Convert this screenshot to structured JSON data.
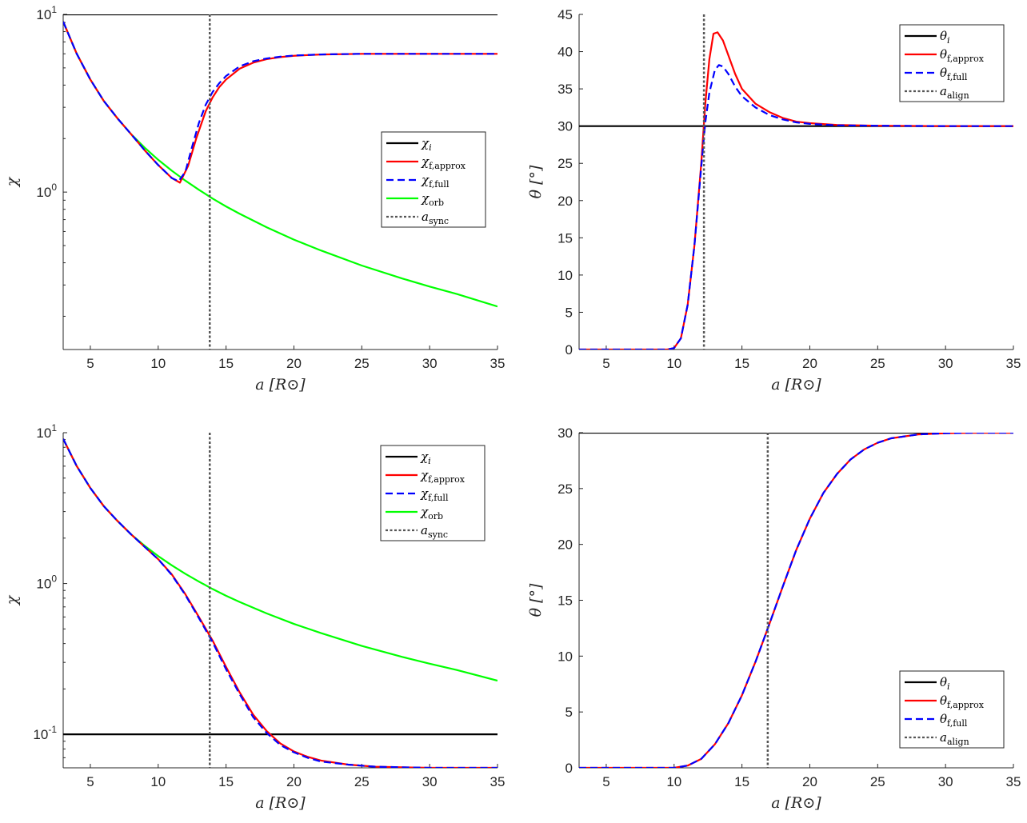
{
  "chart_data": [
    {
      "type": "line",
      "panel": "top-left",
      "xlabel": "a [R⊙]",
      "ylabel": "χ",
      "xlim": [
        3,
        35
      ],
      "ylim": [
        0.13,
        10
      ],
      "yscale": "log",
      "xticks": [
        5,
        10,
        15,
        20,
        25,
        30,
        35
      ],
      "yticks": [
        {
          "value": 1,
          "label": "10",
          "exp": "0"
        },
        {
          "value": 10,
          "label": "10",
          "exp": "1"
        }
      ],
      "legend_position": "center-right",
      "legend": [
        {
          "sym": "χ",
          "sub": "i",
          "color": "#000000",
          "style": "solid"
        },
        {
          "sym": "χ",
          "sub": "f,approx",
          "color": "#ff0000",
          "style": "solid"
        },
        {
          "sym": "χ",
          "sub": "f,full",
          "color": "#0000ff",
          "style": "dashed"
        },
        {
          "sym": "χ",
          "sub": "orb",
          "color": "#00ff00",
          "style": "solid"
        },
        {
          "sym": "a",
          "sub": "sync",
          "color": "#555555",
          "style": "dotted"
        }
      ],
      "vline": 13.8,
      "series": [
        {
          "color": "#000000",
          "style": "solid",
          "x": [
            3,
            35
          ],
          "y": [
            10,
            10
          ]
        },
        {
          "color": "#00ff00",
          "style": "solid",
          "x": [
            3,
            4,
            5,
            6,
            7,
            8,
            9,
            10,
            11,
            12,
            13,
            14,
            15,
            16,
            18,
            20,
            22,
            25,
            28,
            30,
            32,
            35
          ],
          "y": [
            9.1,
            6.0,
            4.3,
            3.25,
            2.6,
            2.12,
            1.78,
            1.52,
            1.32,
            1.16,
            1.03,
            0.92,
            0.83,
            0.755,
            0.633,
            0.54,
            0.469,
            0.386,
            0.326,
            0.294,
            0.267,
            0.227
          ]
        },
        {
          "color": "#ff0000",
          "style": "solid",
          "x": [
            3,
            4,
            5,
            6,
            7,
            8,
            9,
            10,
            11,
            11.6,
            12.2,
            12.8,
            13.5,
            14,
            14.5,
            15,
            16,
            17,
            18,
            19,
            20,
            22,
            25,
            30,
            35
          ],
          "y": [
            9.1,
            6.0,
            4.3,
            3.25,
            2.6,
            2.12,
            1.72,
            1.42,
            1.2,
            1.13,
            1.4,
            2.0,
            2.85,
            3.4,
            3.9,
            4.3,
            4.95,
            5.35,
            5.6,
            5.75,
            5.85,
            5.95,
            6.0,
            6.0,
            6.0
          ]
        },
        {
          "color": "#0000ff",
          "style": "dashed",
          "x": [
            3,
            4,
            5,
            6,
            7,
            8,
            9,
            10,
            11,
            11.5,
            12,
            12.5,
            13,
            13.5,
            14,
            14.5,
            15,
            16,
            17,
            18,
            19,
            20,
            22,
            25,
            30,
            35
          ],
          "y": [
            9.1,
            6.0,
            4.3,
            3.25,
            2.6,
            2.12,
            1.72,
            1.42,
            1.2,
            1.15,
            1.3,
            1.8,
            2.45,
            3.1,
            3.65,
            4.1,
            4.5,
            5.1,
            5.45,
            5.65,
            5.78,
            5.87,
            5.95,
            6.0,
            6.0,
            6.0
          ]
        }
      ]
    },
    {
      "type": "line",
      "panel": "top-right",
      "xlabel": "a [R⊙]",
      "ylabel": "θ [°]",
      "xlim": [
        3,
        35
      ],
      "ylim": [
        0,
        45
      ],
      "yscale": "linear",
      "xticks": [
        5,
        10,
        15,
        20,
        25,
        30,
        35
      ],
      "yticks": [
        0,
        5,
        10,
        15,
        20,
        25,
        30,
        35,
        40,
        45
      ],
      "legend_position": "top-right",
      "legend": [
        {
          "sym": "θ",
          "sub": "i",
          "color": "#000000",
          "style": "solid"
        },
        {
          "sym": "θ",
          "sub": "f,approx",
          "color": "#ff0000",
          "style": "solid"
        },
        {
          "sym": "θ",
          "sub": "f,full",
          "color": "#0000ff",
          "style": "dashed"
        },
        {
          "sym": "a",
          "sub": "align",
          "color": "#555555",
          "style": "dotted"
        }
      ],
      "vline": 12.2,
      "series": [
        {
          "color": "#000000",
          "style": "solid",
          "x": [
            3,
            35
          ],
          "y": [
            30,
            30
          ]
        },
        {
          "color": "#ff0000",
          "style": "solid",
          "x": [
            3,
            9.5,
            10,
            10.5,
            11,
            11.5,
            12,
            12.3,
            12.6,
            12.9,
            13.2,
            13.6,
            14,
            14.5,
            15,
            16,
            17,
            18,
            19,
            20,
            22,
            25,
            30,
            35
          ],
          "y": [
            0,
            0,
            0.2,
            1.5,
            6,
            14,
            25,
            33,
            39,
            42.4,
            42.6,
            41.5,
            39.5,
            37,
            35,
            33,
            31.9,
            31.1,
            30.6,
            30.4,
            30.15,
            30.05,
            30,
            30
          ]
        },
        {
          "color": "#0000ff",
          "style": "dashed",
          "x": [
            3,
            9.5,
            10,
            10.5,
            11,
            11.5,
            12,
            12.3,
            12.6,
            13,
            13.3,
            13.6,
            14,
            14.5,
            15,
            16,
            17,
            18,
            19,
            20,
            22,
            25,
            30,
            35
          ],
          "y": [
            0,
            0,
            0.2,
            1.5,
            6,
            14,
            24.5,
            30.5,
            34.5,
            37.5,
            38.2,
            38,
            37,
            35.3,
            34,
            32.5,
            31.5,
            30.9,
            30.5,
            30.3,
            30.1,
            30.05,
            30,
            30
          ]
        }
      ]
    },
    {
      "type": "line",
      "panel": "bottom-left",
      "xlabel": "a [R⊙]",
      "ylabel": "χ",
      "xlim": [
        3,
        35
      ],
      "ylim": [
        0.06,
        10
      ],
      "yscale": "log",
      "xticks": [
        5,
        10,
        15,
        20,
        25,
        30,
        35
      ],
      "yticks": [
        {
          "value": 0.1,
          "label": "10",
          "exp": "-1"
        },
        {
          "value": 1,
          "label": "10",
          "exp": "0"
        },
        {
          "value": 10,
          "label": "10",
          "exp": "1"
        }
      ],
      "legend_position": "top-right",
      "legend": [
        {
          "sym": "χ",
          "sub": "i",
          "color": "#000000",
          "style": "solid"
        },
        {
          "sym": "χ",
          "sub": "f,approx",
          "color": "#ff0000",
          "style": "solid"
        },
        {
          "sym": "χ",
          "sub": "f,full",
          "color": "#0000ff",
          "style": "dashed"
        },
        {
          "sym": "χ",
          "sub": "orb",
          "color": "#00ff00",
          "style": "solid"
        },
        {
          "sym": "a",
          "sub": "sync",
          "color": "#555555",
          "style": "dotted"
        }
      ],
      "vline": 13.8,
      "series": [
        {
          "color": "#000000",
          "style": "solid",
          "x": [
            3,
            35
          ],
          "y": [
            0.1,
            0.1
          ]
        },
        {
          "color": "#00ff00",
          "style": "solid",
          "x": [
            3,
            4,
            5,
            6,
            7,
            8,
            9,
            10,
            11,
            12,
            13,
            14,
            15,
            16,
            18,
            20,
            22,
            25,
            28,
            30,
            32,
            35
          ],
          "y": [
            9.1,
            6.0,
            4.3,
            3.25,
            2.6,
            2.12,
            1.78,
            1.52,
            1.32,
            1.16,
            1.03,
            0.92,
            0.83,
            0.755,
            0.633,
            0.54,
            0.469,
            0.386,
            0.326,
            0.294,
            0.267,
            0.227
          ]
        },
        {
          "color": "#ff0000",
          "style": "solid",
          "x": [
            3,
            4,
            5,
            6,
            7,
            8,
            9,
            10,
            11,
            12,
            13,
            14,
            15,
            16,
            17,
            18,
            19,
            20,
            21,
            22,
            24,
            26,
            30,
            35
          ],
          "y": [
            9.1,
            6.0,
            4.3,
            3.25,
            2.6,
            2.12,
            1.75,
            1.45,
            1.15,
            0.85,
            0.6,
            0.42,
            0.28,
            0.19,
            0.135,
            0.105,
            0.087,
            0.077,
            0.071,
            0.067,
            0.063,
            0.061,
            0.06,
            0.06
          ]
        },
        {
          "color": "#0000ff",
          "style": "dashed",
          "x": [
            3,
            4,
            5,
            6,
            7,
            8,
            9,
            10,
            11,
            12,
            13,
            14,
            15,
            16,
            17,
            18,
            19,
            20,
            21,
            22,
            24,
            26,
            30,
            35
          ],
          "y": [
            9.1,
            6.0,
            4.3,
            3.25,
            2.6,
            2.12,
            1.75,
            1.45,
            1.14,
            0.84,
            0.59,
            0.41,
            0.27,
            0.185,
            0.13,
            0.102,
            0.085,
            0.076,
            0.07,
            0.066,
            0.063,
            0.061,
            0.06,
            0.06
          ]
        }
      ]
    },
    {
      "type": "line",
      "panel": "bottom-right",
      "xlabel": "a [R⊙]",
      "ylabel": "θ [°]",
      "xlim": [
        3,
        35
      ],
      "ylim": [
        0,
        30
      ],
      "yscale": "linear",
      "xticks": [
        5,
        10,
        15,
        20,
        25,
        30,
        35
      ],
      "yticks": [
        0,
        5,
        10,
        15,
        20,
        25,
        30
      ],
      "legend_position": "bottom-right",
      "legend": [
        {
          "sym": "θ",
          "sub": "i",
          "color": "#000000",
          "style": "solid"
        },
        {
          "sym": "θ",
          "sub": "f,approx",
          "color": "#ff0000",
          "style": "solid"
        },
        {
          "sym": "θ",
          "sub": "f,full",
          "color": "#0000ff",
          "style": "dashed"
        },
        {
          "sym": "a",
          "sub": "align",
          "color": "#555555",
          "style": "dotted"
        }
      ],
      "vline": 16.9,
      "series": [
        {
          "color": "#000000",
          "style": "solid",
          "x": [
            3,
            35
          ],
          "y": [
            30,
            30
          ]
        },
        {
          "color": "#ff0000",
          "style": "solid",
          "x": [
            3,
            10,
            11,
            12,
            13,
            14,
            15,
            16,
            17,
            18,
            19,
            20,
            21,
            22,
            23,
            24,
            25,
            26,
            28,
            30,
            32,
            35
          ],
          "y": [
            0,
            0,
            0.2,
            0.8,
            2.1,
            4,
            6.5,
            9.5,
            12.8,
            16.2,
            19.5,
            22.3,
            24.6,
            26.3,
            27.6,
            28.5,
            29.1,
            29.5,
            29.85,
            29.95,
            30,
            30
          ]
        },
        {
          "color": "#0000ff",
          "style": "dashed",
          "x": [
            3,
            10,
            11,
            12,
            13,
            14,
            15,
            16,
            17,
            18,
            19,
            20,
            21,
            22,
            23,
            24,
            25,
            26,
            28,
            30,
            32,
            35
          ],
          "y": [
            0,
            0,
            0.2,
            0.8,
            2.1,
            4,
            6.5,
            9.5,
            12.8,
            16.2,
            19.5,
            22.3,
            24.6,
            26.3,
            27.6,
            28.5,
            29.1,
            29.5,
            29.85,
            29.95,
            30,
            30
          ]
        }
      ]
    }
  ]
}
